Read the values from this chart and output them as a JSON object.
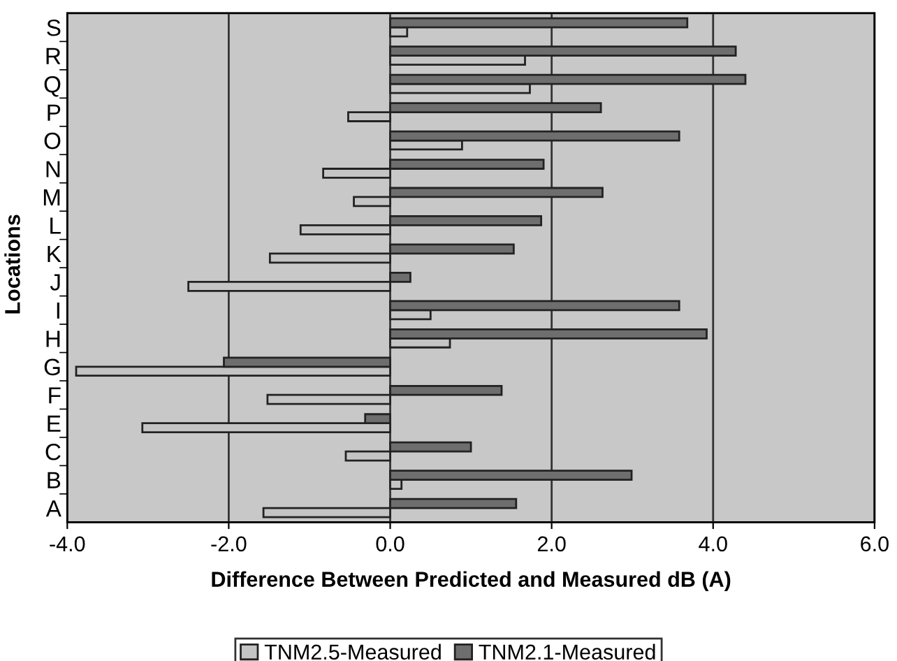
{
  "chart_data": {
    "type": "bar",
    "orientation": "horizontal",
    "xlabel": "Difference Between Predicted and Measured dB (A)",
    "ylabel": "Locations",
    "categories": [
      "S",
      "R",
      "Q",
      "P",
      "O",
      "N",
      "M",
      "L",
      "K",
      "J",
      "I",
      "H",
      "G",
      "F",
      "E",
      "C",
      "B",
      "A"
    ],
    "series": [
      {
        "name": "TNM2.5-Measured",
        "color": "#c4c4c4",
        "values": [
          0.21,
          1.67,
          1.73,
          -0.52,
          0.89,
          -0.83,
          -0.45,
          -1.11,
          -1.49,
          -2.5,
          0.5,
          0.74,
          -3.89,
          -1.52,
          -3.07,
          -0.55,
          0.14,
          -1.57
        ]
      },
      {
        "name": "TNM2.1-Measured",
        "color": "#6e6e6e",
        "values": [
          3.68,
          4.28,
          4.4,
          2.61,
          3.58,
          1.9,
          2.63,
          1.87,
          1.53,
          0.25,
          3.58,
          3.92,
          -2.06,
          1.38,
          -0.31,
          1.0,
          2.99,
          1.56
        ]
      }
    ],
    "xlim": [
      -4,
      6
    ],
    "xticks": [
      {
        "value": -4,
        "label": "-4.0"
      },
      {
        "value": -2,
        "label": "-2.0"
      },
      {
        "value": 0,
        "label": "0.0"
      },
      {
        "value": 2,
        "label": "2.0"
      },
      {
        "value": 4,
        "label": "4.0"
      },
      {
        "value": 6,
        "label": "6.0"
      }
    ],
    "grid": "x",
    "legend": "bottom"
  }
}
